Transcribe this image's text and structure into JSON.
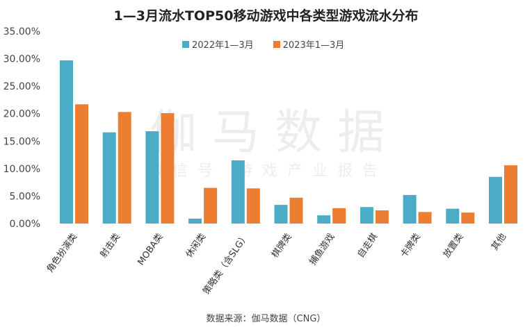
{
  "chart_data": {
    "type": "bar",
    "title": "1—3月流水TOP50移动游戏中各类型游戏流水分布",
    "categories": [
      "角色扮演类",
      "射击类",
      "MOBA类",
      "休闲类",
      "策略类（含SLG）",
      "棋牌类",
      "捕鱼游戏",
      "自走棋",
      "卡牌类",
      "放置类",
      "其他"
    ],
    "series": [
      {
        "name": "2022年1—3月",
        "color": "#4BACC6",
        "values": [
          29.7,
          16.6,
          16.8,
          0.9,
          11.5,
          3.4,
          1.5,
          3.0,
          5.2,
          2.7,
          8.5
        ]
      },
      {
        "name": "2023年1—3月",
        "color": "#ED7D31",
        "values": [
          21.7,
          20.3,
          20.1,
          6.5,
          6.4,
          4.7,
          2.8,
          2.4,
          2.1,
          2.0,
          10.6
        ]
      }
    ],
    "ylim": [
      0,
      35
    ],
    "yticks": [
      "0.00%",
      "5.00%",
      "10.00%",
      "15.00%",
      "20.00%",
      "25.00%",
      "30.00%",
      "35.00%"
    ],
    "grid": false,
    "legend": "top-center"
  },
  "source": "数据来源：伽马数据（CNG）",
  "watermark": {
    "main": "伽马数据",
    "sub": "微信号：游戏产业报告"
  }
}
